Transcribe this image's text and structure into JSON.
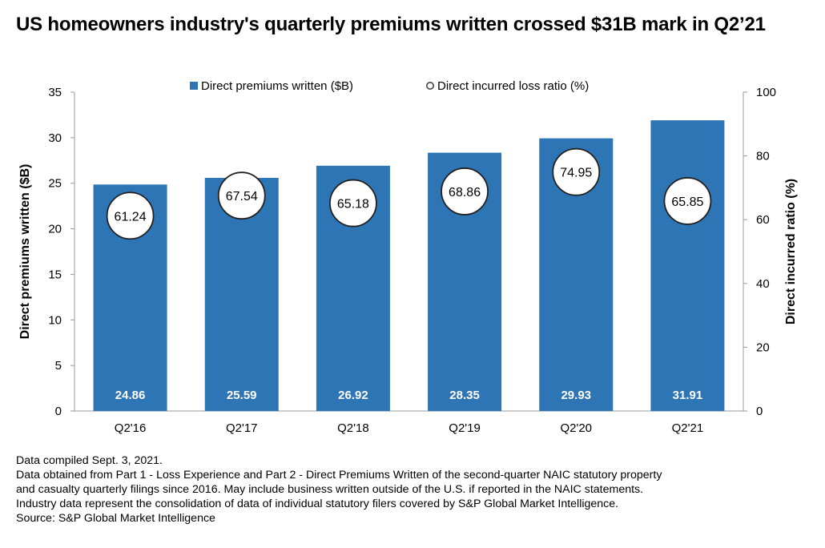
{
  "title": "US homeowners industry's quarterly premiums written crossed $31B mark in Q2’21",
  "colors": {
    "bar": "#2e75b6",
    "bar_label": "#ffffff",
    "circle_fill": "#ffffff",
    "circle_stroke": "#222222",
    "axis": "#999999"
  },
  "chart_data": {
    "type": "bar",
    "categories": [
      "Q2'16",
      "Q2'17",
      "Q2'18",
      "Q2'19",
      "Q2'20",
      "Q2'21"
    ],
    "series": [
      {
        "name": "Direct premiums written ($B)",
        "type": "bar",
        "axis": "left",
        "values": [
          24.86,
          25.59,
          26.92,
          28.35,
          29.93,
          31.91
        ],
        "labels": [
          "24.86",
          "25.59",
          "26.92",
          "28.35",
          "29.93",
          "31.91"
        ]
      },
      {
        "name": "Direct incurred loss ratio (%)",
        "type": "scatter",
        "axis": "right",
        "values": [
          61.24,
          67.54,
          65.18,
          68.86,
          74.95,
          65.85
        ],
        "labels": [
          "61.24",
          "67.54",
          "65.18",
          "68.86",
          "74.95",
          "65.85"
        ]
      }
    ],
    "ylabel": "Direct premiums written ($B)",
    "ylim": [
      0,
      35
    ],
    "yticks": [
      "0",
      "5",
      "10",
      "15",
      "20",
      "25",
      "30",
      "35"
    ],
    "y2label": "Direct incurred ratio (%)",
    "y2lim": [
      0,
      100
    ],
    "y2ticks": [
      "0",
      "20",
      "40",
      "60",
      "80",
      "100"
    ],
    "legend": "top-center",
    "grid": false
  },
  "notes": [
    "Data compiled Sept. 3, 2021.",
    "Data obtained from Part 1 - Loss Experience and Part 2 - Direct Premiums Written of the second-quarter NAIC statutory property",
    "and casualty quarterly filings since 2016. May include business written outside of the U.S. if reported in the NAIC statements.",
    "Industry data represent the consolidation of data of individual statutory filers covered by S&P Global Market Intelligence.",
    "Source: S&P Global Market Intelligence"
  ]
}
